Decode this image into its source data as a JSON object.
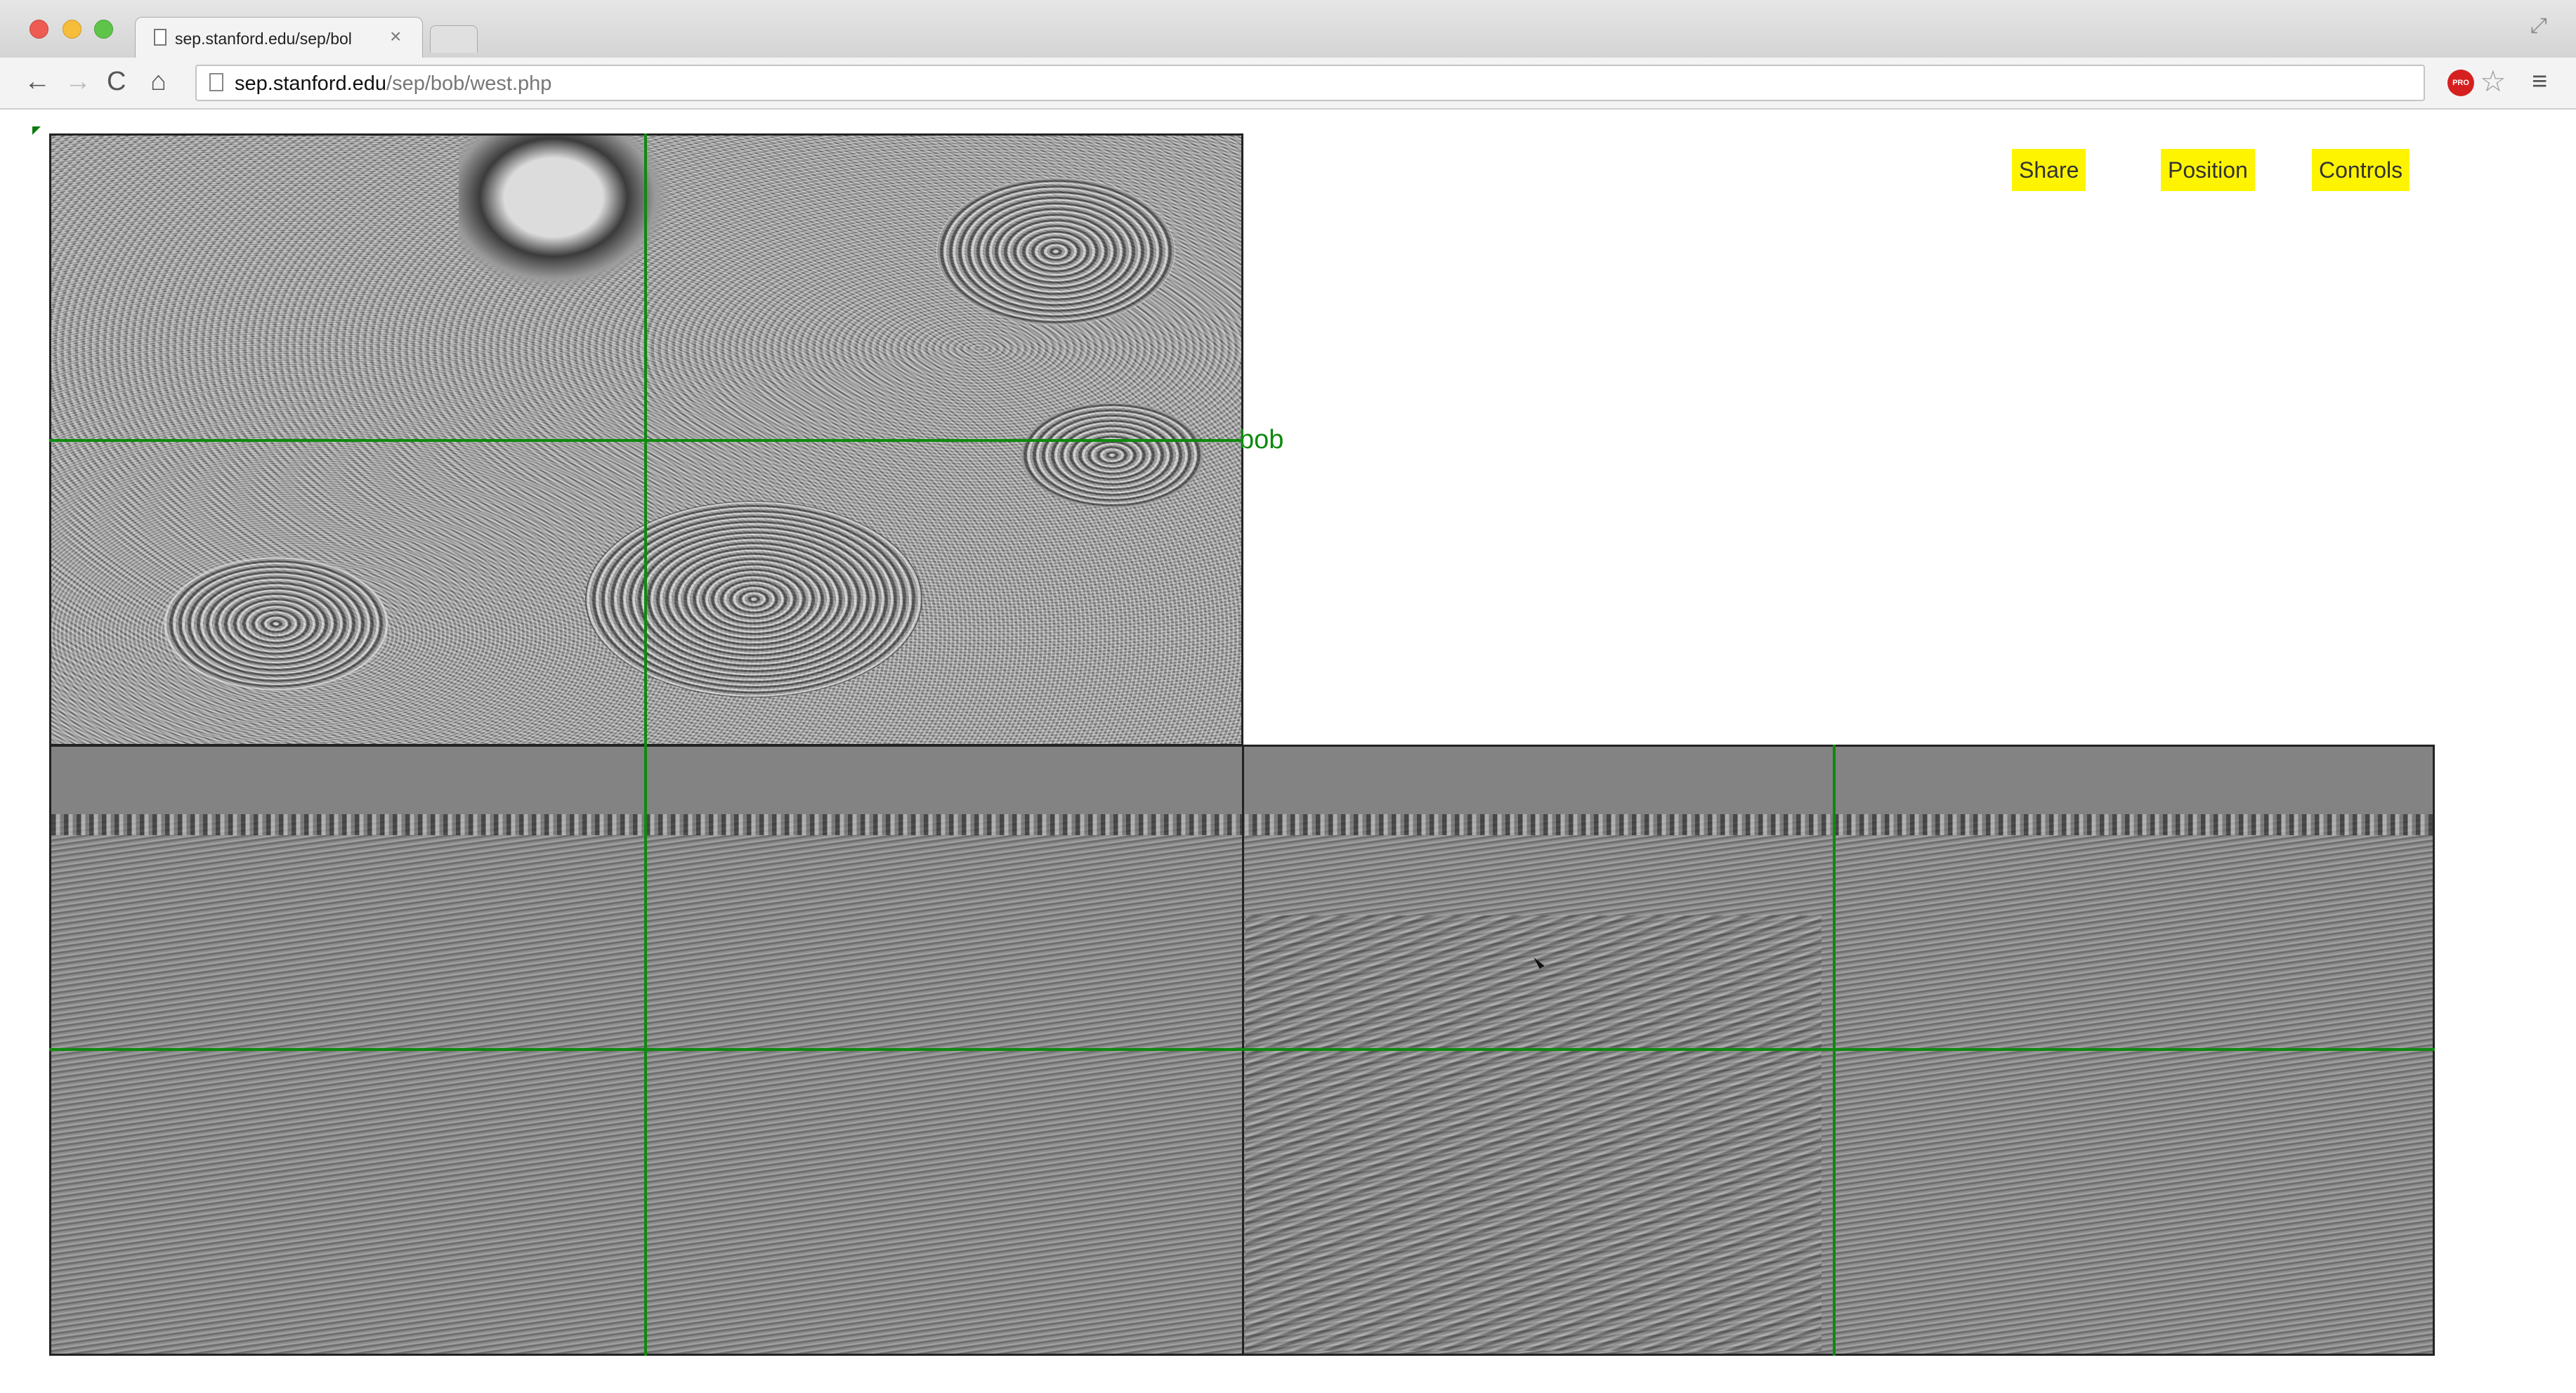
{
  "browser": {
    "tab_title": "sep.stanford.edu/sep/bol",
    "tab_close": "×",
    "url_host": "sep.stanford.edu",
    "url_path": "/sep/bob/west.php",
    "extension_badge": "PRO"
  },
  "viewer": {
    "plan_label": "bob",
    "buttons": {
      "share": "Share",
      "position": "Position",
      "controls": "Controls"
    },
    "highlight_color": "#fff400",
    "crosshair_color": "#0e8a0e"
  },
  "icons": {
    "back": "←",
    "forward": "→",
    "reload": "C",
    "home": "⌂",
    "star": "☆",
    "menu": "≡",
    "fullscreen": "⤢"
  }
}
